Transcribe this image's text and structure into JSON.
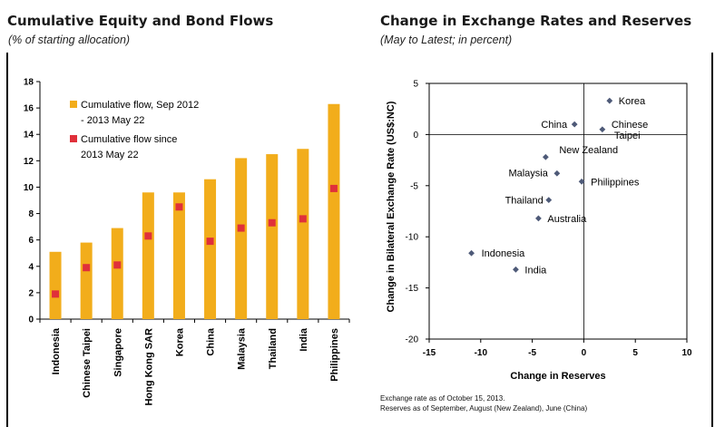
{
  "left_panel": {
    "title": "Cumulative Equity and Bond Flows",
    "subtitle": "(% of starting allocation)"
  },
  "right_panel": {
    "title": "Change in Exchange Rates and Reserves",
    "subtitle": "(May to Latest; in percent)",
    "notes": [
      "Exchange rate as of October 15, 2013.",
      "Reserves as of September, August (New Zealand), June (China)"
    ]
  },
  "colors": {
    "bar": "#f2ad1b",
    "marker": "#e0303a",
    "scatter_point": "#4e5a78",
    "axis": "#000000"
  },
  "chart_data": [
    {
      "type": "bar",
      "title": "Cumulative Equity and Bond Flows",
      "subtitle": "(% of starting allocation)",
      "categories": [
        "Indonesia",
        "Chinese Taipei",
        "Singapore",
        "Hong Kong SAR",
        "Korea",
        "China",
        "Malaysia",
        "Thailand",
        "India",
        "Philippines"
      ],
      "series": [
        {
          "name": "Cumulative flow, Sep 2012 - 2013 May 22",
          "kind": "bar",
          "values": [
            5.1,
            5.8,
            6.9,
            9.6,
            9.6,
            10.6,
            12.2,
            12.5,
            12.9,
            16.3
          ]
        },
        {
          "name": "Cumulative flow since 2013 May 22",
          "kind": "marker",
          "values": [
            1.9,
            3.9,
            4.1,
            6.3,
            8.5,
            5.9,
            6.9,
            7.3,
            7.6,
            9.9
          ]
        }
      ],
      "legend_lines": [
        [
          "Cumulative flow, Sep 2012",
          "- 2013 May 22"
        ],
        [
          "Cumulative flow since",
          "2013 May 22"
        ]
      ],
      "ylim": [
        0,
        18
      ],
      "yticks": [
        0,
        2,
        4,
        6,
        8,
        10,
        12,
        14,
        16,
        18
      ],
      "grid": false,
      "legend_position": "top-left"
    },
    {
      "type": "scatter",
      "title": "Change in Exchange Rates and Reserves",
      "subtitle": "(May to Latest; in percent)",
      "xlabel": "Change in Reserves",
      "ylabel": "Change in Bilateral Exchange Rate (US$:NC)",
      "xlim": [
        -15,
        10
      ],
      "ylim": [
        -20,
        5
      ],
      "xticks": [
        -15,
        -10,
        -5,
        0,
        5,
        10
      ],
      "yticks": [
        5,
        0,
        -5,
        -10,
        -15,
        -20
      ],
      "grid": false,
      "points": [
        {
          "label": "Korea",
          "x": 2.5,
          "y": 3.3
        },
        {
          "label": "China",
          "x": -0.9,
          "y": 1.0
        },
        {
          "label": "Chinese Taipei",
          "x": 1.8,
          "y": 0.5
        },
        {
          "label": "New Zealand",
          "x": -3.7,
          "y": -2.2
        },
        {
          "label": "Malaysia",
          "x": -2.6,
          "y": -3.8
        },
        {
          "label": "Philippines",
          "x": -0.2,
          "y": -4.6
        },
        {
          "label": "Thailand",
          "x": -3.4,
          "y": -6.4
        },
        {
          "label": "Australia",
          "x": -4.4,
          "y": -8.2
        },
        {
          "label": "Indonesia",
          "x": -10.9,
          "y": -11.6
        },
        {
          "label": "India",
          "x": -6.6,
          "y": -13.2
        }
      ]
    }
  ]
}
